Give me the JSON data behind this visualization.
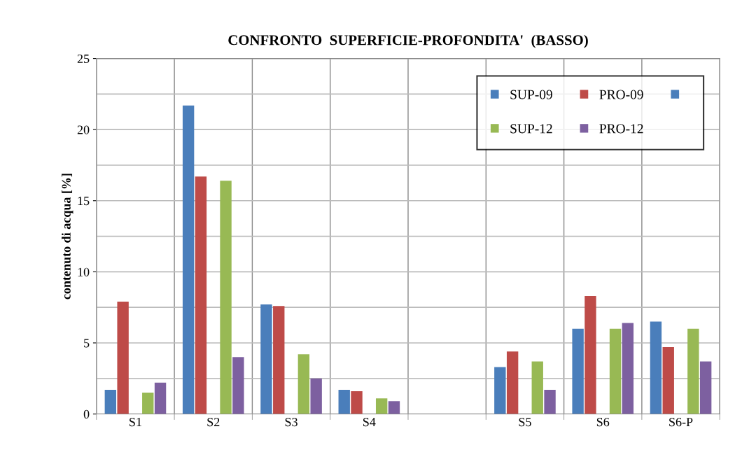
{
  "chart_data": {
    "type": "bar",
    "title": "CONFRONTO  SUPERFICIE-PROFONDITA'  (BASSO)",
    "ylabel": "contenuto di acqua [%]",
    "categories": [
      "S1",
      "S2",
      "S3",
      "S4",
      null,
      "S5",
      "S6",
      "S6-P"
    ],
    "series": [
      {
        "name": "SUP-09",
        "color": "#4a7ebb",
        "values": [
          1.7,
          21.7,
          7.7,
          1.7,
          null,
          3.3,
          6.0,
          6.5
        ]
      },
      {
        "name": "PRO-09",
        "color": "#be4b48",
        "values": [
          7.9,
          16.7,
          7.6,
          1.6,
          null,
          4.4,
          8.3,
          4.7
        ]
      },
      {
        "color": "#4a7ebb",
        "values": [
          null,
          null,
          null,
          null,
          null,
          null,
          null,
          null
        ]
      },
      {
        "name": "SUP-12",
        "color": "#98b954",
        "values": [
          1.5,
          16.4,
          4.2,
          1.1,
          null,
          3.7,
          6.0,
          6.0
        ]
      },
      {
        "name": "PRO-12",
        "color": "#7d60a0",
        "values": [
          2.2,
          4.0,
          2.5,
          0.9,
          null,
          1.7,
          6.4,
          3.7
        ]
      }
    ],
    "ylim": [
      0,
      25
    ],
    "yticks": [
      0,
      5,
      10,
      15,
      20,
      25
    ],
    "grid": true,
    "legend": "top right"
  }
}
